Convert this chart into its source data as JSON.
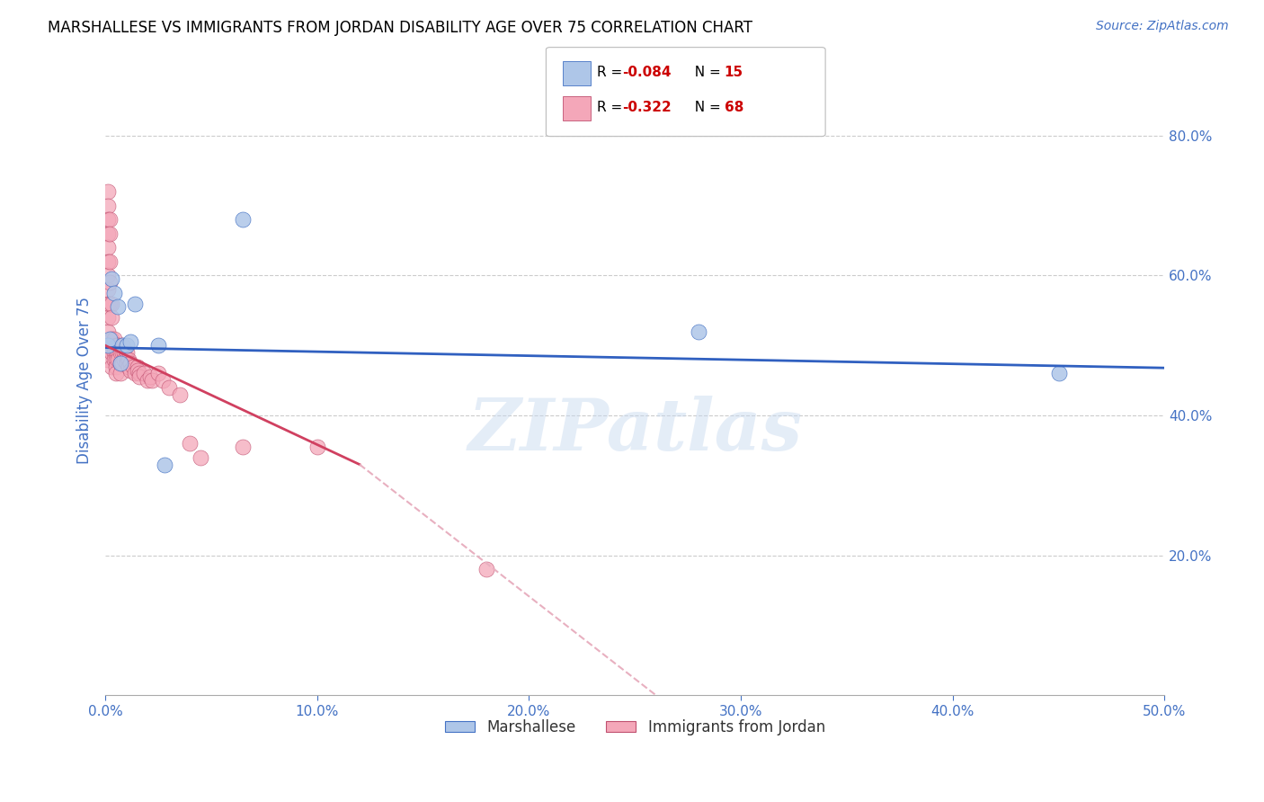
{
  "title": "MARSHALLESE VS IMMIGRANTS FROM JORDAN DISABILITY AGE OVER 75 CORRELATION CHART",
  "source": "Source: ZipAtlas.com",
  "ylabel_label": "Disability Age Over 75",
  "xlim": [
    0.0,
    0.5
  ],
  "ylim": [
    0.0,
    0.9
  ],
  "ytick_vals_right": [
    0.2,
    0.4,
    0.6,
    0.8
  ],
  "ytick_labels_right": [
    "20.0%",
    "40.0%",
    "60.0%",
    "80.0%"
  ],
  "xtick_vals": [
    0.0,
    0.1,
    0.2,
    0.3,
    0.4,
    0.5
  ],
  "xtick_labels": [
    "0.0%",
    "10.0%",
    "20.0%",
    "30.0%",
    "40.0%",
    "50.0%"
  ],
  "marshallese_color": "#aec6e8",
  "marshallese_edge": "#4472c4",
  "jordan_color": "#f4a7b9",
  "jordan_edge": "#c05070",
  "trend_blue_color": "#3060c0",
  "trend_pink_solid": "#d04060",
  "trend_pink_dash": "#e8b0c0",
  "legend_color1": "#aec6e8",
  "legend_color2": "#f4a7b9",
  "legend_label1": "Marshallese",
  "legend_label2": "Immigrants from Jordan",
  "watermark": "ZIPatlas",
  "grid_color": "#cccccc",
  "background_color": "#ffffff",
  "axis_color": "#4472c4",
  "marshallese_x": [
    0.001,
    0.002,
    0.003,
    0.004,
    0.006,
    0.007,
    0.008,
    0.01,
    0.012,
    0.014,
    0.025,
    0.028,
    0.065,
    0.28,
    0.45
  ],
  "marshallese_y": [
    0.5,
    0.51,
    0.595,
    0.575,
    0.555,
    0.475,
    0.5,
    0.5,
    0.505,
    0.56,
    0.5,
    0.33,
    0.68,
    0.52,
    0.46
  ],
  "jordan_x": [
    0.001,
    0.001,
    0.001,
    0.001,
    0.001,
    0.001,
    0.001,
    0.001,
    0.001,
    0.001,
    0.001,
    0.001,
    0.001,
    0.002,
    0.002,
    0.002,
    0.002,
    0.002,
    0.003,
    0.003,
    0.003,
    0.003,
    0.003,
    0.004,
    0.004,
    0.004,
    0.005,
    0.005,
    0.005,
    0.005,
    0.005,
    0.006,
    0.006,
    0.006,
    0.007,
    0.007,
    0.007,
    0.008,
    0.008,
    0.008,
    0.009,
    0.009,
    0.01,
    0.01,
    0.01,
    0.011,
    0.011,
    0.012,
    0.012,
    0.013,
    0.014,
    0.015,
    0.015,
    0.016,
    0.016,
    0.018,
    0.02,
    0.021,
    0.022,
    0.025,
    0.027,
    0.03,
    0.035,
    0.04,
    0.045,
    0.065,
    0.1,
    0.18
  ],
  "jordan_y": [
    0.72,
    0.7,
    0.68,
    0.66,
    0.64,
    0.62,
    0.6,
    0.58,
    0.56,
    0.54,
    0.52,
    0.5,
    0.48,
    0.68,
    0.66,
    0.62,
    0.59,
    0.56,
    0.56,
    0.54,
    0.51,
    0.49,
    0.47,
    0.51,
    0.49,
    0.48,
    0.5,
    0.49,
    0.48,
    0.47,
    0.46,
    0.5,
    0.49,
    0.48,
    0.49,
    0.475,
    0.46,
    0.5,
    0.49,
    0.475,
    0.49,
    0.48,
    0.49,
    0.48,
    0.475,
    0.48,
    0.47,
    0.475,
    0.465,
    0.47,
    0.46,
    0.47,
    0.465,
    0.46,
    0.455,
    0.46,
    0.45,
    0.455,
    0.45,
    0.46,
    0.45,
    0.44,
    0.43,
    0.36,
    0.34,
    0.355,
    0.355,
    0.18
  ]
}
